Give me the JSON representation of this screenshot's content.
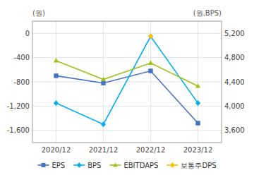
{
  "chart_data": {
    "type": "line",
    "categories": [
      "2020/12",
      "2021/12",
      "2022/12",
      "2023/12"
    ],
    "series": [
      {
        "name": "EPS",
        "color": "#4472c4",
        "marker": "square",
        "values": [
          -700,
          -820,
          -620,
          -1480
        ]
      },
      {
        "name": "BPS",
        "color": "#00b0f0",
        "marker": "diamond",
        "axis": "y2",
        "values": [
          4050,
          3700,
          5150,
          4050
        ]
      },
      {
        "name": "EBITDAPS",
        "color": "#9dc219",
        "marker": "triangle",
        "values": [
          -450,
          -760,
          -490,
          -870
        ]
      },
      {
        "name": "보통주DPS",
        "color": "#ffc000",
        "marker": "diamond",
        "axis": "y2",
        "values": [
          null,
          null,
          5150,
          null
        ]
      }
    ],
    "ylim": [
      -1800,
      200
    ],
    "yticks": [
      0,
      -400,
      -800,
      {
        "value": -1200,
        "label": "-1,200"
      },
      {
        "value": -1600,
        "label": "-1,600"
      }
    ],
    "y2lim": [
      3400,
      5400
    ],
    "y2ticks": [
      {
        "value": 3600,
        "label": "3,600"
      },
      {
        "value": 4000,
        "label": "4,000"
      },
      {
        "value": 4400,
        "label": "4,400"
      },
      {
        "value": 4800,
        "label": "4,800"
      },
      {
        "value": 5200,
        "label": "5,200"
      }
    ],
    "ylabel": "(원)",
    "y2label": "(원,BPS)",
    "grid": true,
    "legend": "bottom"
  }
}
